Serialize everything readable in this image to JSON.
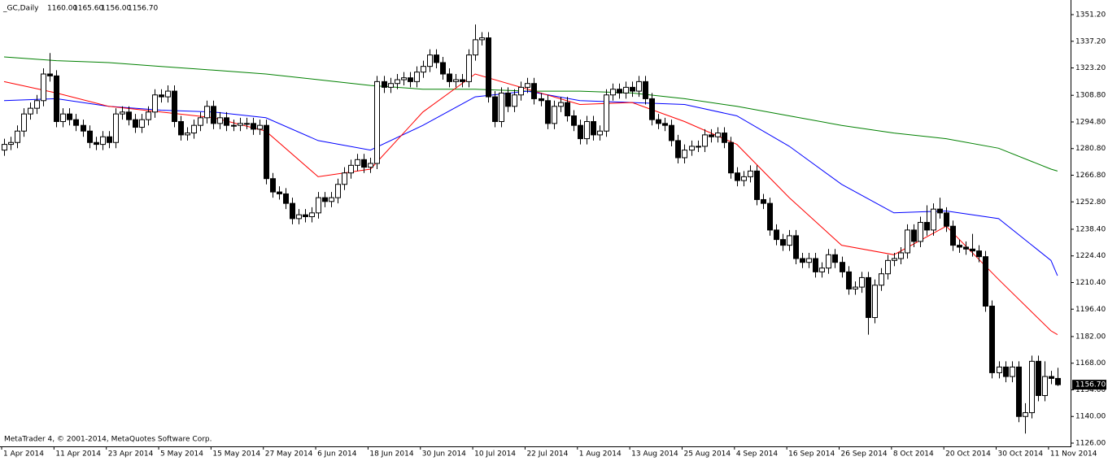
{
  "chart_data": {
    "type": "candlestick",
    "title": "_GC,Daily",
    "quote": [
      "1160.00",
      "1165.60",
      "1156.00",
      "1156.70"
    ],
    "watermark": "MetaTrader 4, © 2001-2014, MetaQuotes Software Corp.",
    "up_color": "#ffffff",
    "down_color": "#000000",
    "edge_color": "#000000",
    "open": [
      1280,
      1283,
      1284,
      1290,
      1299,
      1302,
      1306,
      1320,
      1319,
      1295,
      1299,
      1296,
      1293,
      1290,
      1284,
      1283,
      1287,
      1284,
      1299,
      1300,
      1296,
      1292,
      1296,
      1300,
      1309,
      1308,
      1311,
      1295,
      1288,
      1289,
      1293,
      1297,
      1303,
      1294,
      1297,
      1293,
      1293,
      1294,
      1294,
      1291,
      1293,
      1265,
      1258,
      1257,
      1252,
      1244,
      1246,
      1245,
      1247,
      1255,
      1253,
      1255,
      1262,
      1268,
      1272,
      1275,
      1271,
      1273,
      1316,
      1313,
      1315,
      1317,
      1318,
      1316,
      1321,
      1324,
      1330,
      1326,
      1320,
      1316,
      1317,
      1316,
      1330,
      1338,
      1339,
      1308,
      1295,
      1310,
      1303,
      1309,
      1313,
      1315,
      1307,
      1306,
      1294,
      1303,
      1305,
      1298,
      1293,
      1286,
      1295,
      1288,
      1290,
      1309,
      1312,
      1310,
      1313,
      1311,
      1316,
      1307,
      1296,
      1294,
      1293,
      1285,
      1276,
      1280,
      1282,
      1282,
      1288,
      1287,
      1289,
      1284,
      1268,
      1264,
      1266,
      1269,
      1254,
      1252,
      1238,
      1233,
      1230,
      1235,
      1223,
      1221,
      1223,
      1216,
      1218,
      1225,
      1221,
      1216,
      1207,
      1208,
      1213,
      1192,
      1209,
      1215,
      1222,
      1223,
      1226,
      1238,
      1232,
      1242,
      1238,
      1249,
      1247,
      1240,
      1230,
      1229,
      1228,
      1227,
      1224,
      1198,
      1163,
      1166,
      1161,
      1166,
      1140,
      1142,
      1169,
      1151,
      1161,
      1160
    ],
    "high": [
      1286,
      1287,
      1293,
      1302,
      1305,
      1309,
      1323,
      1331,
      1322,
      1302,
      1302,
      1299,
      1296,
      1293,
      1287,
      1290,
      1290,
      1302,
      1303,
      1303,
      1299,
      1299,
      1303,
      1312,
      1312,
      1314,
      1314,
      1298,
      1292,
      1296,
      1300,
      1306,
      1306,
      1300,
      1300,
      1296,
      1297,
      1297,
      1297,
      1296,
      1296,
      1268,
      1261,
      1260,
      1255,
      1249,
      1249,
      1250,
      1258,
      1258,
      1258,
      1265,
      1271,
      1275,
      1278,
      1278,
      1276,
      1319,
      1319,
      1318,
      1320,
      1321,
      1321,
      1324,
      1327,
      1333,
      1333,
      1329,
      1323,
      1320,
      1320,
      1333,
      1346,
      1342,
      1342,
      1311,
      1313,
      1313,
      1312,
      1316,
      1318,
      1318,
      1310,
      1309,
      1306,
      1308,
      1308,
      1301,
      1296,
      1298,
      1298,
      1293,
      1312,
      1315,
      1315,
      1316,
      1316,
      1319,
      1319,
      1310,
      1299,
      1297,
      1296,
      1288,
      1283,
      1285,
      1285,
      1291,
      1291,
      1292,
      1292,
      1287,
      1271,
      1269,
      1272,
      1272,
      1257,
      1255,
      1241,
      1236,
      1238,
      1238,
      1226,
      1226,
      1226,
      1221,
      1228,
      1228,
      1224,
      1219,
      1211,
      1216,
      1216,
      1212,
      1218,
      1225,
      1226,
      1229,
      1241,
      1241,
      1245,
      1251,
      1252,
      1255,
      1250,
      1243,
      1233,
      1232,
      1236,
      1230,
      1227,
      1201,
      1169,
      1169,
      1169,
      1169,
      1147,
      1172,
      1172,
      1169,
      1164,
      1165.6
    ],
    "low": [
      1277,
      1280,
      1281,
      1287,
      1296,
      1299,
      1303,
      1316,
      1292,
      1292,
      1293,
      1290,
      1287,
      1281,
      1280,
      1280,
      1281,
      1281,
      1296,
      1293,
      1289,
      1289,
      1293,
      1297,
      1305,
      1305,
      1292,
      1285,
      1285,
      1286,
      1290,
      1294,
      1291,
      1291,
      1290,
      1290,
      1290,
      1291,
      1288,
      1288,
      1262,
      1255,
      1254,
      1249,
      1241,
      1241,
      1242,
      1242,
      1244,
      1250,
      1250,
      1252,
      1259,
      1265,
      1269,
      1268,
      1268,
      1270,
      1310,
      1310,
      1312,
      1314,
      1313,
      1313,
      1318,
      1321,
      1323,
      1317,
      1313,
      1313,
      1313,
      1313,
      1327,
      1335,
      1305,
      1292,
      1292,
      1300,
      1300,
      1306,
      1310,
      1304,
      1303,
      1291,
      1291,
      1300,
      1295,
      1290,
      1283,
      1283,
      1285,
      1285,
      1287,
      1306,
      1307,
      1307,
      1308,
      1308,
      1304,
      1293,
      1291,
      1290,
      1282,
      1273,
      1273,
      1277,
      1279,
      1279,
      1284,
      1284,
      1281,
      1265,
      1261,
      1261,
      1263,
      1251,
      1249,
      1235,
      1230,
      1227,
      1227,
      1220,
      1218,
      1218,
      1213,
      1213,
      1215,
      1218,
      1213,
      1204,
      1204,
      1205,
      1183,
      1189,
      1206,
      1212,
      1219,
      1220,
      1223,
      1229,
      1229,
      1235,
      1235,
      1244,
      1237,
      1227,
      1226,
      1225,
      1224,
      1221,
      1195,
      1160,
      1160,
      1158,
      1158,
      1137,
      1131,
      1139,
      1148,
      1148,
      1157,
      1156
    ],
    "close": [
      1283,
      1284,
      1290,
      1299,
      1302,
      1306,
      1320,
      1319,
      1295,
      1299,
      1296,
      1293,
      1290,
      1284,
      1283,
      1287,
      1284,
      1299,
      1300,
      1296,
      1292,
      1296,
      1300,
      1309,
      1308,
      1311,
      1295,
      1288,
      1289,
      1293,
      1297,
      1303,
      1294,
      1297,
      1293,
      1293,
      1294,
      1294,
      1291,
      1293,
      1265,
      1258,
      1257,
      1252,
      1244,
      1246,
      1245,
      1247,
      1255,
      1253,
      1255,
      1262,
      1268,
      1272,
      1275,
      1271,
      1273,
      1316,
      1313,
      1315,
      1317,
      1318,
      1316,
      1321,
      1324,
      1330,
      1326,
      1320,
      1316,
      1317,
      1316,
      1330,
      1338,
      1339,
      1308,
      1295,
      1310,
      1303,
      1309,
      1313,
      1315,
      1307,
      1306,
      1294,
      1303,
      1305,
      1298,
      1293,
      1286,
      1295,
      1288,
      1290,
      1309,
      1312,
      1310,
      1313,
      1311,
      1316,
      1307,
      1296,
      1294,
      1293,
      1285,
      1276,
      1280,
      1282,
      1282,
      1288,
      1287,
      1289,
      1284,
      1268,
      1264,
      1266,
      1269,
      1254,
      1252,
      1238,
      1233,
      1230,
      1235,
      1223,
      1221,
      1223,
      1216,
      1218,
      1225,
      1221,
      1216,
      1207,
      1208,
      1213,
      1192,
      1209,
      1215,
      1222,
      1223,
      1226,
      1238,
      1232,
      1242,
      1238,
      1249,
      1247,
      1240,
      1230,
      1229,
      1228,
      1227,
      1224,
      1198,
      1163,
      1166,
      1161,
      1166,
      1140,
      1142,
      1169,
      1151,
      1161,
      1160,
      1156.7
    ],
    "ma_lines": [
      {
        "color": "#008000",
        "x": [
          0,
          8,
          16,
          24,
          32,
          40,
          48,
          56,
          64,
          72,
          80,
          88,
          96,
          104,
          112,
          120,
          128,
          136,
          144,
          152,
          160,
          161
        ],
        "values": [
          1329,
          1327,
          1326,
          1324,
          1322,
          1320,
          1317,
          1314,
          1312,
          1312,
          1311,
          1311,
          1310,
          1307,
          1303,
          1298,
          1293,
          1289,
          1286,
          1281,
          1270,
          1269
        ]
      },
      {
        "color": "#0000ff",
        "x": [
          0,
          8,
          16,
          24,
          32,
          40,
          48,
          56,
          64,
          72,
          80,
          88,
          96,
          104,
          112,
          120,
          128,
          136,
          144,
          152,
          160,
          161
        ],
        "values": [
          1306,
          1307,
          1303,
          1301,
          1300,
          1297,
          1285,
          1280,
          1293,
          1308,
          1311,
          1306,
          1305,
          1304,
          1298,
          1282,
          1262,
          1247,
          1248,
          1244,
          1222,
          1214
        ]
      },
      {
        "color": "#ff0000",
        "x": [
          0,
          8,
          16,
          24,
          32,
          40,
          48,
          56,
          64,
          72,
          80,
          88,
          96,
          104,
          112,
          120,
          128,
          136,
          144,
          152,
          160,
          161
        ],
        "values": [
          1316,
          1310,
          1303,
          1300,
          1297,
          1290,
          1266,
          1270,
          1300,
          1320,
          1312,
          1304,
          1305,
          1295,
          1283,
          1255,
          1230,
          1225,
          1240,
          1212,
          1185,
          1183
        ]
      }
    ],
    "xlim": [
      -0.5,
      163
    ],
    "ylim": [
      1126,
      1351.2
    ],
    "yticks": [
      {
        "value": 1351.2,
        "label": "1351.20"
      },
      {
        "value": 1337.2,
        "label": "1337.20"
      },
      {
        "value": 1323.2,
        "label": "1323.20"
      },
      {
        "value": 1308.8,
        "label": "1308.80"
      },
      {
        "value": 1294.8,
        "label": "1294.80"
      },
      {
        "value": 1280.8,
        "label": "1280.80"
      },
      {
        "value": 1266.8,
        "label": "1266.80"
      },
      {
        "value": 1252.8,
        "label": "1252.80"
      },
      {
        "value": 1238.4,
        "label": "1238.40"
      },
      {
        "value": 1224.4,
        "label": "1224.40"
      },
      {
        "value": 1210.4,
        "label": "1210.40"
      },
      {
        "value": 1196.4,
        "label": "1196.40"
      },
      {
        "value": 1182,
        "label": "1182.00"
      },
      {
        "value": 1168,
        "label": "1168.00"
      },
      {
        "value": 1154,
        "label": "1154.00"
      },
      {
        "value": 1140,
        "label": "1140.00"
      },
      {
        "value": 1126,
        "label": "1126.00"
      }
    ],
    "xticks": [
      {
        "value": 0,
        "label": "1 Apr 2014"
      },
      {
        "value": 8,
        "label": "11 Apr 2014"
      },
      {
        "value": 16,
        "label": "23 Apr 2014"
      },
      {
        "value": 24,
        "label": "5 May 2014"
      },
      {
        "value": 32,
        "label": "15 May 2014"
      },
      {
        "value": 40,
        "label": "27 May 2014"
      },
      {
        "value": 48,
        "label": "6 Jun 2014"
      },
      {
        "value": 56,
        "label": "18 Jun 2014"
      },
      {
        "value": 64,
        "label": "30 Jun 2014"
      },
      {
        "value": 72,
        "label": "10 Jul 2014"
      },
      {
        "value": 80,
        "label": "22 Jul 2014"
      },
      {
        "value": 88,
        "label": "1 Aug 2014"
      },
      {
        "value": 96,
        "label": "13 Aug 2014"
      },
      {
        "value": 104,
        "label": "25 Aug 2014"
      },
      {
        "value": 112,
        "label": "4 Sep 2014"
      },
      {
        "value": 120,
        "label": "16 Sep 2014"
      },
      {
        "value": 128,
        "label": "26 Sep 2014"
      },
      {
        "value": 136,
        "label": "8 Oct 2014"
      },
      {
        "value": 144,
        "label": "20 Oct 2014"
      },
      {
        "value": 152,
        "label": "30 Oct 2014"
      },
      {
        "value": 160,
        "label": "11 Nov 2014"
      }
    ]
  }
}
